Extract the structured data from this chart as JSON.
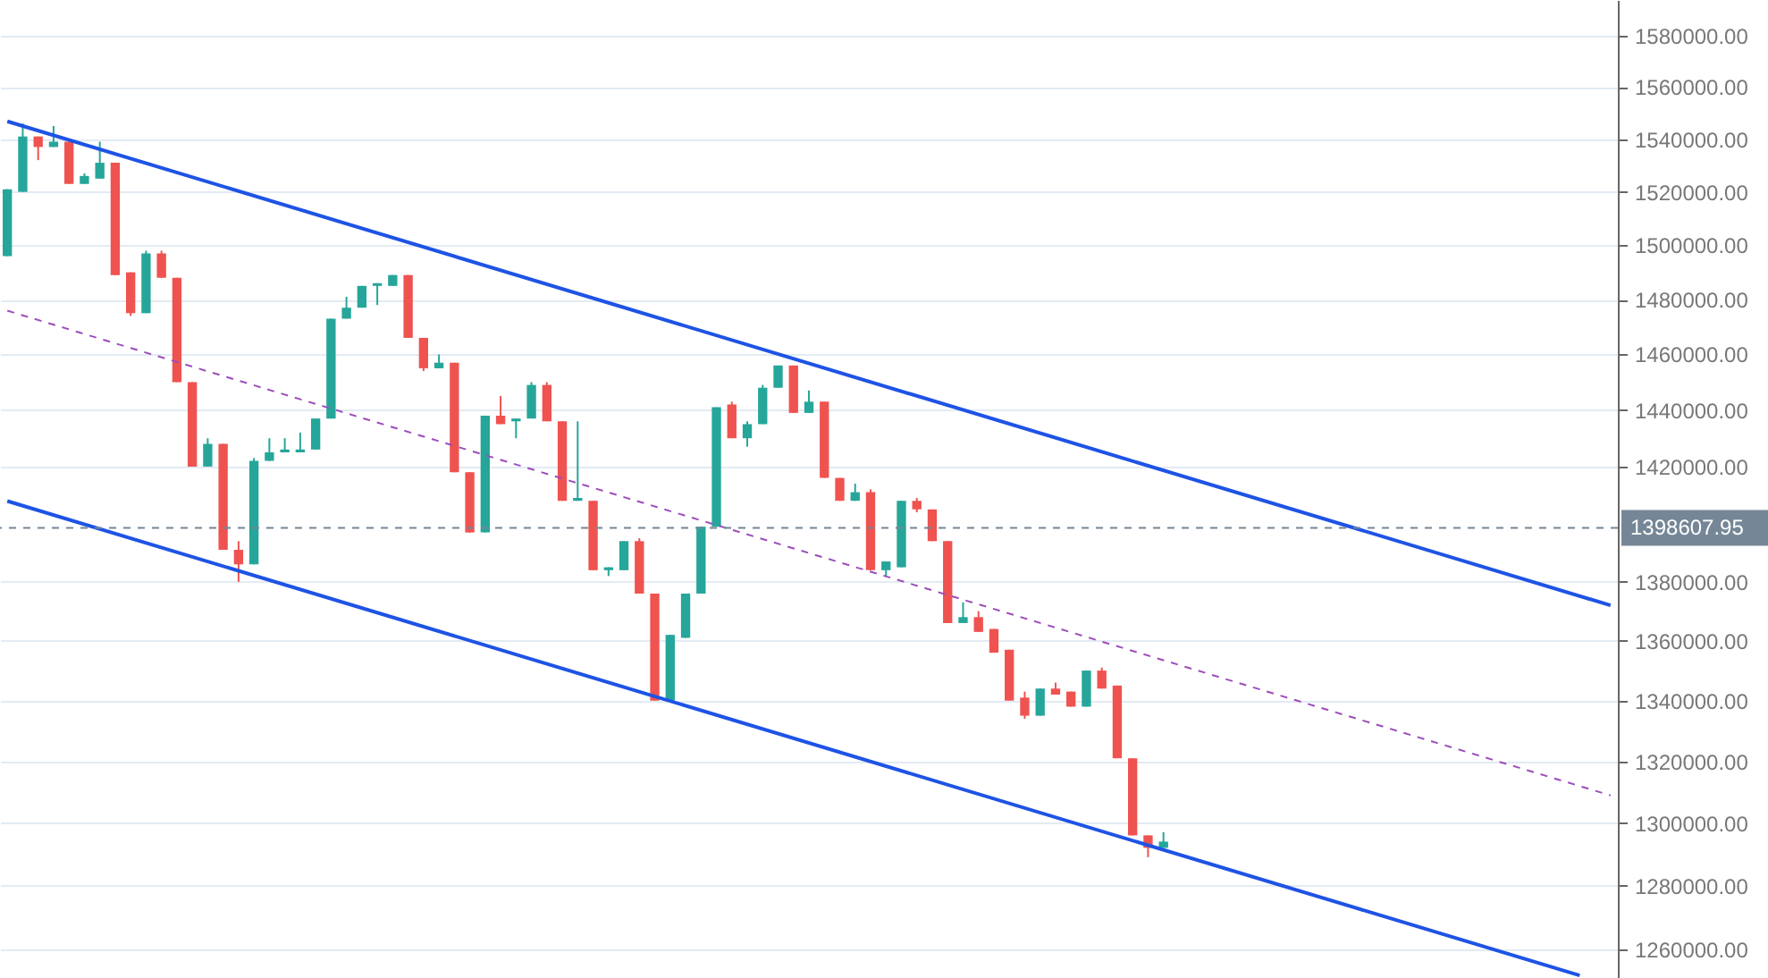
{
  "chart_data": {
    "type": "candlestick",
    "log": true,
    "grid": "y",
    "tick_labels": "y",
    "categories": [
      null,
      null,
      null,
      null,
      null,
      null,
      null,
      null,
      null,
      null,
      null,
      null,
      null,
      null,
      null,
      null,
      null,
      null,
      null,
      null,
      null,
      null,
      null,
      null,
      null,
      null,
      null,
      null,
      null,
      null,
      null,
      null,
      null,
      null,
      null,
      null,
      null,
      null,
      null,
      null,
      null,
      null,
      null,
      null,
      null,
      null,
      null,
      null,
      null,
      null,
      null,
      null,
      null,
      null,
      null,
      null,
      null,
      null,
      null,
      null,
      null,
      null,
      null,
      null,
      null,
      null,
      null,
      null,
      null,
      null,
      null,
      null,
      null,
      null,
      null,
      null,
      null,
      null,
      null,
      null,
      null,
      null,
      null,
      null,
      null,
      null,
      null,
      null,
      null,
      null,
      null,
      null,
      null,
      null,
      null,
      null,
      null,
      null,
      null,
      null,
      null,
      null,
      null,
      null,
      null
    ],
    "ohlc": [
      [
        1496000,
        1521000,
        1496000,
        1521000
      ],
      [
        1520000,
        1546000,
        1520000,
        1541000
      ],
      [
        1541000,
        1541000,
        1532000,
        1537000
      ],
      [
        1537000,
        1545000,
        1537000,
        1539000
      ],
      [
        1539000,
        1539000,
        1523000,
        1523000
      ],
      [
        1523000,
        1527000,
        1523000,
        1526000
      ],
      [
        1525000,
        1539000,
        1525000,
        1531000
      ],
      [
        1531000,
        1531000,
        1489000,
        1489000
      ],
      [
        1490000,
        1490000,
        1474000,
        1475000
      ],
      [
        1475000,
        1498000,
        1475000,
        1497000
      ],
      [
        1497000,
        1498000,
        1488000,
        1488000
      ],
      [
        1488000,
        1488000,
        1450000,
        1450000
      ],
      [
        1450000,
        1450000,
        1420000,
        1420000
      ],
      [
        1420000,
        1430000,
        1420000,
        1428000
      ],
      [
        1428000,
        1428000,
        1391000,
        1391000
      ],
      [
        1391000,
        1394000,
        1380000,
        1386000
      ],
      [
        1386000,
        1423000,
        1386000,
        1422000
      ],
      [
        1422000,
        1430000,
        1422000,
        1425000
      ],
      [
        1425000,
        1430000,
        1425000,
        1426000
      ],
      [
        1425000,
        1432000,
        1425000,
        1426000
      ],
      [
        1426000,
        1437000,
        1426000,
        1437000
      ],
      [
        1437000,
        1473000,
        1437000,
        1473000
      ],
      [
        1473000,
        1481000,
        1473000,
        1477000
      ],
      [
        1477000,
        1485000,
        1477000,
        1485000
      ],
      [
        1485000,
        1486000,
        1478000,
        1486000
      ],
      [
        1485000,
        1489000,
        1485000,
        1489000
      ],
      [
        1489000,
        1489000,
        1466000,
        1466000
      ],
      [
        1466000,
        1466000,
        1454000,
        1455000
      ],
      [
        1455000,
        1460000,
        1455000,
        1457000
      ],
      [
        1457000,
        1457000,
        1418000,
        1418000
      ],
      [
        1418000,
        1418000,
        1397000,
        1397000
      ],
      [
        1397000,
        1438000,
        1397000,
        1438000
      ],
      [
        1438000,
        1445000,
        1435000,
        1435000
      ],
      [
        1436000,
        1437000,
        1430000,
        1437000
      ],
      [
        1437000,
        1450000,
        1437000,
        1449000
      ],
      [
        1449000,
        1450000,
        1436000,
        1436000
      ],
      [
        1436000,
        1436000,
        1408000,
        1408000
      ],
      [
        1408000,
        1436000,
        1408000,
        1409000
      ],
      [
        1408000,
        1408000,
        1384000,
        1384000
      ],
      [
        1384000,
        1385000,
        1382000,
        1385000
      ],
      [
        1384000,
        1394000,
        1384000,
        1394000
      ],
      [
        1394000,
        1395000,
        1376000,
        1376000
      ],
      [
        1376000,
        1376000,
        1340000,
        1340000
      ],
      [
        1340000,
        1362000,
        1340000,
        1362000
      ],
      [
        1361000,
        1376000,
        1361000,
        1376000
      ],
      [
        1376000,
        1399000,
        1376000,
        1399000
      ],
      [
        1399000,
        1441000,
        1399000,
        1441000
      ],
      [
        1442000,
        1443000,
        1430000,
        1430000
      ],
      [
        1430000,
        1436000,
        1427000,
        1435000
      ],
      [
        1435000,
        1449000,
        1435000,
        1448000
      ],
      [
        1448000,
        1456000,
        1448000,
        1456000
      ],
      [
        1456000,
        1456000,
        1439000,
        1439000
      ],
      [
        1439000,
        1447000,
        1439000,
        1443000
      ],
      [
        1443000,
        1443000,
        1416000,
        1416000
      ],
      [
        1416000,
        1416000,
        1408000,
        1408000
      ],
      [
        1408000,
        1414000,
        1408000,
        1411000
      ],
      [
        1411000,
        1412000,
        1384000,
        1384000
      ],
      [
        1384000,
        1387000,
        1382000,
        1387000
      ],
      [
        1385000,
        1408000,
        1385000,
        1408000
      ],
      [
        1408000,
        1409000,
        1404000,
        1405000
      ],
      [
        1405000,
        1405000,
        1394000,
        1394000
      ],
      [
        1394000,
        1394000,
        1366000,
        1366000
      ],
      [
        1366000,
        1373000,
        1366000,
        1368000
      ],
      [
        1368000,
        1370000,
        1363000,
        1363000
      ],
      [
        1364000,
        1364000,
        1356000,
        1356000
      ],
      [
        1357000,
        1357000,
        1340000,
        1340000
      ],
      [
        1341000,
        1343000,
        1334000,
        1335000
      ],
      [
        1335000,
        1344000,
        1335000,
        1344000
      ],
      [
        1344000,
        1346000,
        1342000,
        1342000
      ],
      [
        1343000,
        1343000,
        1338000,
        1338000
      ],
      [
        1338000,
        1350000,
        1338000,
        1350000
      ],
      [
        1350000,
        1351000,
        1344000,
        1344000
      ],
      [
        1345000,
        1345000,
        1321000,
        1321000
      ],
      [
        1321000,
        1321000,
        1296000,
        1296000
      ],
      [
        1296000,
        1296000,
        1289000,
        1292000
      ],
      [
        1292000,
        1297000,
        1292000,
        1294000
      ],
      null,
      null,
      null,
      null,
      null,
      null,
      null,
      null,
      null,
      null,
      null,
      null,
      null,
      null,
      null,
      null,
      null,
      null,
      null,
      null,
      null,
      null,
      null,
      null,
      null,
      null,
      null,
      null,
      null
    ],
    "colors": [
      "#26a69a",
      "#26a69a",
      "#ef5350",
      "#26a69a",
      "#ef5350",
      "#26a69a",
      "#26a69a",
      "#ef5350",
      "#ef5350",
      "#26a69a",
      "#ef5350",
      "#ef5350",
      "#ef5350",
      "#26a69a",
      "#ef5350",
      "#ef5350",
      "#26a69a",
      "#26a69a",
      "#26a69a",
      "#26a69a",
      "#26a69a",
      "#26a69a",
      "#26a69a",
      "#26a69a",
      "#26a69a",
      "#26a69a",
      "#ef5350",
      "#ef5350",
      "#26a69a",
      "#ef5350",
      "#ef5350",
      "#26a69a",
      "#ef5350",
      "#26a69a",
      "#26a69a",
      "#ef5350",
      "#ef5350",
      "#26a69a",
      "#ef5350",
      "#26a69a",
      "#26a69a",
      "#ef5350",
      "#ef5350",
      "#26a69a",
      "#26a69a",
      "#26a69a",
      "#26a69a",
      "#ef5350",
      "#26a69a",
      "#26a69a",
      "#26a69a",
      "#ef5350",
      "#26a69a",
      "#ef5350",
      "#ef5350",
      "#26a69a",
      "#ef5350",
      "#26a69a",
      "#26a69a",
      "#ef5350",
      "#ef5350",
      "#ef5350",
      "#26a69a",
      "#ef5350",
      "#ef5350",
      "#ef5350",
      "#ef5350",
      "#26a69a",
      "#ef5350",
      "#ef5350",
      "#26a69a",
      "#ef5350",
      "#ef5350",
      "#ef5350",
      "#ef5350",
      "#26a69a",
      null,
      null,
      null,
      null,
      null,
      null,
      null,
      null,
      null,
      null,
      null,
      null,
      null,
      null,
      null,
      null,
      null,
      null,
      null,
      null,
      null,
      null,
      null,
      null,
      null,
      null,
      null,
      null,
      null
    ],
    "series": [
      {
        "type": "line",
        "color": "#1e53e5",
        "line_style": "solid",
        "values": [
          1546800,
          null,
          null,
          null,
          null,
          null,
          null,
          null,
          null,
          null,
          null,
          null,
          null,
          null,
          null,
          null,
          null,
          null,
          null,
          null,
          null,
          null,
          null,
          null,
          null,
          null,
          null,
          null,
          null,
          null,
          null,
          null,
          null,
          null,
          null,
          null,
          null,
          null,
          null,
          null,
          null,
          null,
          null,
          null,
          null,
          null,
          null,
          null,
          null,
          null,
          null,
          null,
          null,
          null,
          null,
          null,
          null,
          null,
          null,
          null,
          null,
          null,
          null,
          null,
          null,
          null,
          null,
          null,
          null,
          null,
          null,
          null,
          null,
          null,
          null,
          null,
          null,
          null,
          null,
          null,
          null,
          null,
          null,
          null,
          null,
          null,
          null,
          null,
          null,
          null,
          null,
          null,
          null,
          null,
          null,
          null,
          null,
          null,
          null,
          null,
          null,
          null,
          null,
          null,
          1372000
        ]
      },
      {
        "type": "line",
        "color": "#1e53e5",
        "line_style": "solid",
        "values": [
          1407900,
          null,
          null,
          null,
          null,
          null,
          null,
          null,
          null,
          null,
          null,
          null,
          null,
          null,
          null,
          null,
          null,
          null,
          null,
          null,
          null,
          null,
          null,
          null,
          null,
          null,
          null,
          null,
          null,
          null,
          null,
          null,
          null,
          null,
          null,
          null,
          null,
          null,
          null,
          null,
          null,
          null,
          null,
          null,
          null,
          null,
          null,
          null,
          null,
          null,
          null,
          null,
          null,
          null,
          null,
          null,
          null,
          null,
          null,
          null,
          null,
          null,
          null,
          null,
          null,
          null,
          null,
          null,
          null,
          null,
          null,
          null,
          null,
          null,
          null,
          null,
          null,
          null,
          null,
          null,
          null,
          null,
          null,
          null,
          null,
          null,
          null,
          null,
          null,
          null,
          null,
          null,
          null,
          null,
          null,
          null,
          null,
          null,
          null,
          null,
          null,
          null,
          1251800,
          null,
          null
        ]
      },
      {
        "type": "line",
        "color": "#9c4dbb",
        "line_style": "dashed",
        "values": [
          1475900,
          null,
          null,
          null,
          null,
          null,
          null,
          null,
          null,
          null,
          null,
          null,
          null,
          null,
          null,
          null,
          null,
          null,
          null,
          null,
          null,
          null,
          null,
          null,
          null,
          null,
          null,
          null,
          null,
          null,
          null,
          null,
          null,
          null,
          null,
          null,
          null,
          null,
          null,
          null,
          null,
          null,
          null,
          null,
          null,
          null,
          null,
          null,
          null,
          null,
          null,
          null,
          null,
          null,
          null,
          null,
          null,
          null,
          null,
          null,
          null,
          null,
          null,
          null,
          null,
          null,
          null,
          null,
          null,
          null,
          null,
          null,
          null,
          null,
          null,
          null,
          null,
          null,
          null,
          null,
          null,
          null,
          null,
          null,
          null,
          null,
          null,
          null,
          null,
          null,
          null,
          null,
          null,
          null,
          null,
          null,
          null,
          null,
          null,
          null,
          null,
          null,
          null,
          null,
          1308900
        ]
      }
    ],
    "ylim": [
      1251000,
      1594000
    ],
    "yticks": [
      {
        "value": 1260000,
        "label": "1260000.00"
      },
      {
        "value": 1280000,
        "label": "1280000.00"
      },
      {
        "value": 1300000,
        "label": "1300000.00"
      },
      {
        "value": 1320000,
        "label": "1320000.00"
      },
      {
        "value": 1340000,
        "label": "1340000.00"
      },
      {
        "value": 1360000,
        "label": "1360000.00"
      },
      {
        "value": 1380000,
        "label": "1380000.00"
      },
      {
        "value": 1420000,
        "label": "1420000.00"
      },
      {
        "value": 1440000,
        "label": "1440000.00"
      },
      {
        "value": 1460000,
        "label": "1460000.00"
      },
      {
        "value": 1480000,
        "label": "1480000.00"
      },
      {
        "value": 1500000,
        "label": "1500000.00"
      },
      {
        "value": 1520000,
        "label": "1520000.00"
      },
      {
        "value": 1540000,
        "label": "1540000.00"
      },
      {
        "value": 1560000,
        "label": "1560000.00"
      },
      {
        "value": 1580000,
        "label": "1580000.00"
      }
    ],
    "ref_lines": [
      {
        "axis": "y",
        "value": 1398607.95,
        "label": "1398607.95",
        "color": "#758696",
        "line_style": "dashed"
      }
    ]
  }
}
